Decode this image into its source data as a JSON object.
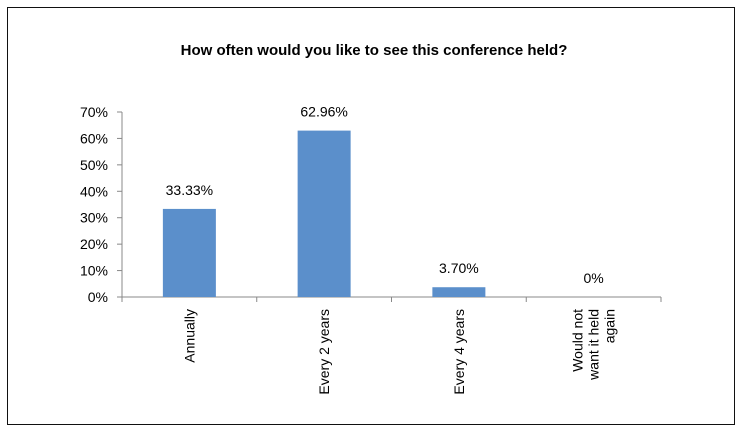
{
  "chart_data": {
    "type": "bar",
    "title": "How often would you like to see this conference held?",
    "categories": [
      [
        "Annually"
      ],
      [
        "Every 2 years"
      ],
      [
        "Every 4 years"
      ],
      [
        "Would not",
        "want it held",
        "again"
      ]
    ],
    "values": [
      33.33,
      62.96,
      3.7,
      0
    ],
    "data_labels": [
      "33.33%",
      "62.96%",
      "3.70%",
      "0%"
    ],
    "y_ticks": [
      "0%",
      "10%",
      "20%",
      "30%",
      "40%",
      "50%",
      "60%",
      "70%"
    ],
    "ylim": [
      0,
      70
    ],
    "xlabel": "",
    "ylabel": "",
    "grid": false,
    "legend": "none",
    "bar_color": "#5b8fcb"
  }
}
